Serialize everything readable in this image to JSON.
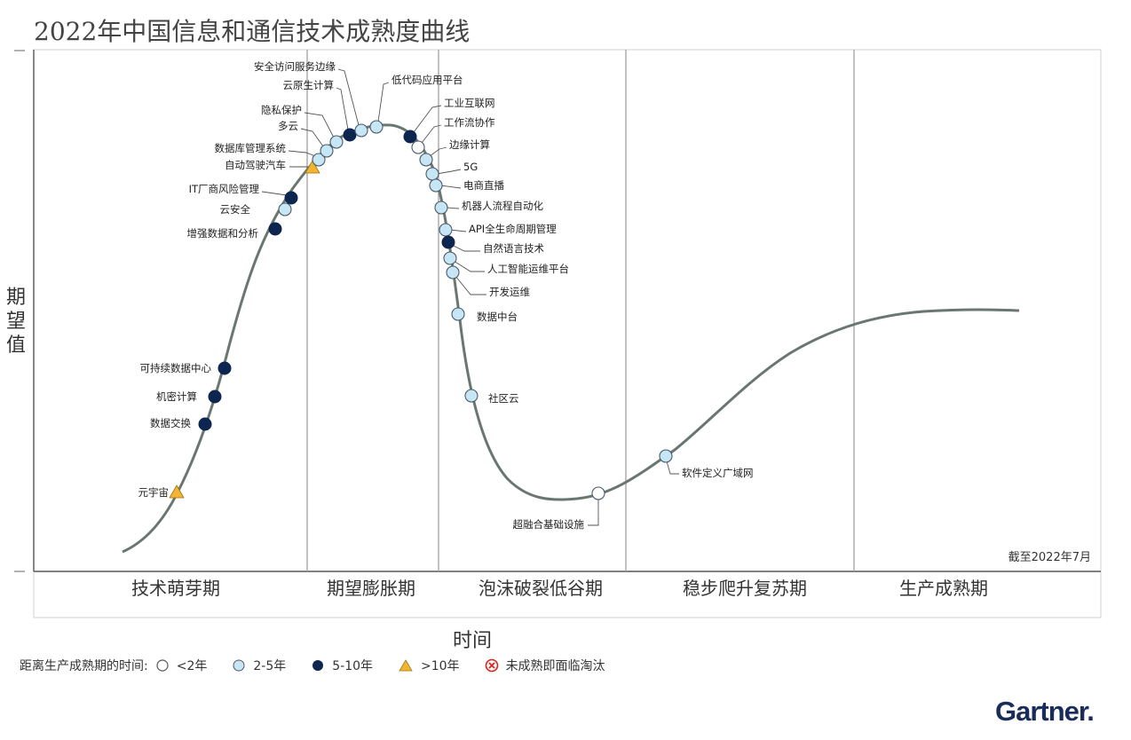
{
  "title": "2022年中国信息和通信技术成熟度曲线",
  "y_axis_label": "期望值",
  "x_axis_label": "时间",
  "as_of": "截至2022年7月",
  "brand": "Gartner.",
  "phases": [
    "技术萌芽期",
    "期望膨胀期",
    "泡沫破裂低谷期",
    "稳步爬升复苏期",
    "生产成熟期"
  ],
  "legend": {
    "title": "距离生产成熟期的时间:",
    "items": [
      {
        "label": "<2年",
        "symbol": "open-circle-icon"
      },
      {
        "label": "2-5年",
        "symbol": "light-blue-circle-icon"
      },
      {
        "label": "5-10年",
        "symbol": "dark-blue-circle-icon"
      },
      {
        "label": ">10年",
        "symbol": "yellow-triangle-icon"
      },
      {
        "label": "未成熟即面临淘汰",
        "symbol": "red-x-circle-icon"
      }
    ]
  },
  "colors": {
    "curve": "#6a7670",
    "lt2": "#ffffff",
    "c2to5": "#c7e6f5",
    "c5to10": "#0d2650",
    "gt10": "#f2b531",
    "obsolete": "#e0201b",
    "grid": "#a0a0a0"
  },
  "chart_data": {
    "type": "hype-cycle",
    "technologies": [
      {
        "name": "元宇宙",
        "phase": "技术萌芽期",
        "years": ">10年"
      },
      {
        "name": "数据交换",
        "phase": "技术萌芽期",
        "years": "5-10年"
      },
      {
        "name": "机密计算",
        "phase": "技术萌芽期",
        "years": "5-10年"
      },
      {
        "name": "可持续数据中心",
        "phase": "技术萌芽期",
        "years": "5-10年"
      },
      {
        "name": "增强数据和分析",
        "phase": "技术萌芽期",
        "years": "5-10年"
      },
      {
        "name": "云安全",
        "phase": "技术萌芽期",
        "years": "2-5年"
      },
      {
        "name": "IT厂商风险管理",
        "phase": "技术萌芽期",
        "years": "5-10年"
      },
      {
        "name": "自动驾驶汽车",
        "phase": "期望膨胀期",
        "years": ">10年"
      },
      {
        "name": "数据库管理系统",
        "phase": "期望膨胀期",
        "years": "2-5年"
      },
      {
        "name": "多云",
        "phase": "期望膨胀期",
        "years": "2-5年"
      },
      {
        "name": "隐私保护",
        "phase": "期望膨胀期",
        "years": "2-5年"
      },
      {
        "name": "云原生计算",
        "phase": "期望膨胀期",
        "years": "5-10年"
      },
      {
        "name": "安全访问服务边缘",
        "phase": "期望膨胀期",
        "years": "2-5年"
      },
      {
        "name": "低代码应用平台",
        "phase": "期望膨胀期",
        "years": "2-5年"
      },
      {
        "name": "工业互联网",
        "phase": "期望膨胀期",
        "years": "5-10年"
      },
      {
        "name": "工作流协作",
        "phase": "期望膨胀期",
        "years": "<2年"
      },
      {
        "name": "边缘计算",
        "phase": "期望膨胀期",
        "years": "2-5年"
      },
      {
        "name": "5G",
        "phase": "期望膨胀期",
        "years": "2-5年"
      },
      {
        "name": "电商直播",
        "phase": "泡沫破裂低谷期",
        "years": "2-5年"
      },
      {
        "name": "机器人流程自动化",
        "phase": "泡沫破裂低谷期",
        "years": "2-5年"
      },
      {
        "name": "API全生命周期管理",
        "phase": "泡沫破裂低谷期",
        "years": "2-5年"
      },
      {
        "name": "自然语言技术",
        "phase": "泡沫破裂低谷期",
        "years": "5-10年"
      },
      {
        "name": "人工智能运维平台",
        "phase": "泡沫破裂低谷期",
        "years": "2-5年"
      },
      {
        "name": "开发运维",
        "phase": "泡沫破裂低谷期",
        "years": "2-5年"
      },
      {
        "name": "数据中台",
        "phase": "泡沫破裂低谷期",
        "years": "2-5年"
      },
      {
        "name": "社区云",
        "phase": "泡沫破裂低谷期",
        "years": "2-5年"
      },
      {
        "name": "超融合基础设施",
        "phase": "泡沫破裂低谷期",
        "years": "<2年"
      },
      {
        "name": "软件定义广域网",
        "phase": "稳步爬升复苏期",
        "years": "2-5年"
      }
    ]
  }
}
